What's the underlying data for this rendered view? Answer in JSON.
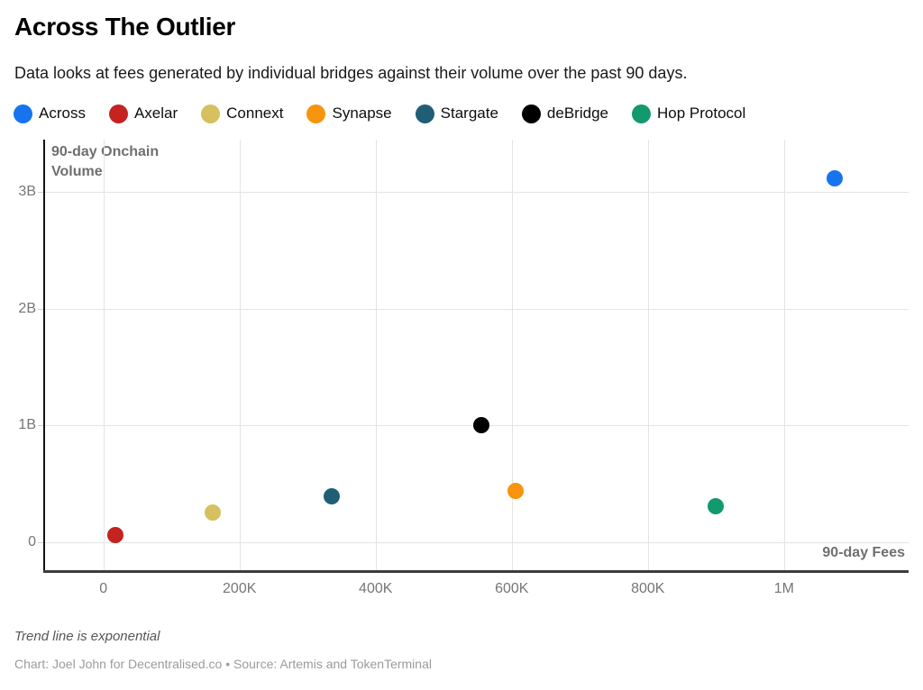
{
  "header": {
    "title": "Across The Outlier",
    "subtitle": "Data looks at fees generated by individual bridges against their volume over the past 90 days."
  },
  "legend": [
    {
      "label": "Across",
      "color": "#1774ee"
    },
    {
      "label": "Axelar",
      "color": "#c42320"
    },
    {
      "label": "Connext",
      "color": "#d6c05f"
    },
    {
      "label": "Synapse",
      "color": "#f7940d"
    },
    {
      "label": "Stargate",
      "color": "#205e76"
    },
    {
      "label": "deBridge",
      "color": "#000000"
    },
    {
      "label": "Hop Protocol",
      "color": "#12996e"
    }
  ],
  "chart_data": {
    "type": "scatter",
    "title": "Across The Outlier",
    "xlabel": "90-day Fees",
    "ylabel": "90-day Onchain Volume",
    "grid": true,
    "legend_position": "top",
    "x_axis": {
      "min": -87000,
      "max": 1183000,
      "ticks": [
        0,
        200000,
        400000,
        600000,
        800000,
        1000000
      ],
      "tick_labels": [
        "0",
        "200K",
        "400K",
        "600K",
        "800K",
        "1M"
      ]
    },
    "y_axis": {
      "min": -250000000,
      "max": 3450000000,
      "ticks": [
        0,
        1000000000,
        2000000000,
        3000000000
      ],
      "tick_labels": [
        "0",
        "1B",
        "2B",
        "3B"
      ]
    },
    "series": [
      {
        "name": "Across",
        "color": "#1774ee",
        "fees": 1075000,
        "volume": 3120000000
      },
      {
        "name": "Axelar",
        "color": "#c42320",
        "fees": 17000,
        "volume": 60000000
      },
      {
        "name": "Connext",
        "color": "#d6c05f",
        "fees": 160000,
        "volume": 250000000
      },
      {
        "name": "Synapse",
        "color": "#f7940d",
        "fees": 605000,
        "volume": 440000000
      },
      {
        "name": "Stargate",
        "color": "#205e76",
        "fees": 335000,
        "volume": 390000000
      },
      {
        "name": "deBridge",
        "color": "#000000",
        "fees": 555000,
        "volume": 1000000000
      },
      {
        "name": "Hop Protocol",
        "color": "#12996e",
        "fees": 900000,
        "volume": 310000000
      }
    ]
  },
  "footer": {
    "note": "Trend line is exponential",
    "credit": "Chart: Joel John for Decentralised.co • Source: Artemis and TokenTerminal"
  }
}
